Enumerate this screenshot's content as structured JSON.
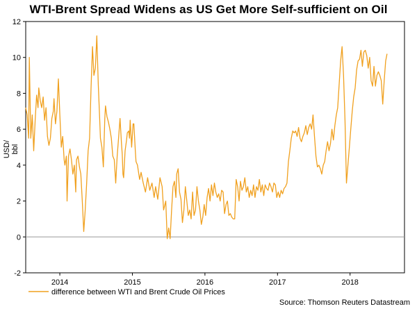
{
  "chart_data": {
    "type": "line",
    "title": "WTI-Brent Spread Widens as US Get More Self-sufficient on Oil",
    "xlabel": "",
    "ylabel": "USD/ bbl",
    "ylim": [
      -2,
      12
    ],
    "yticks": [
      12,
      10,
      8,
      6,
      4,
      2,
      0,
      -2
    ],
    "xlim": [
      2013.53,
      2018.75
    ],
    "xticks": [
      {
        "label": "2014",
        "x": 2014
      },
      {
        "label": "2015",
        "x": 2015
      },
      {
        "label": "2016",
        "x": 2016
      },
      {
        "label": "2017",
        "x": 2017
      },
      {
        "label": "2018",
        "x": 2018
      }
    ],
    "zero_line": true,
    "legend": "bottom-left",
    "source": "Source: Thomson Reuters Datastream",
    "series": [
      {
        "name": "difference between WTI and Brent Crude Oil Prices",
        "color": "#f0a01e",
        "points": [
          [
            2013.53,
            7.2
          ],
          [
            2013.55,
            6.8
          ],
          [
            2013.57,
            5.5
          ],
          [
            2013.58,
            10.0
          ],
          [
            2013.6,
            5.5
          ],
          [
            2013.62,
            6.8
          ],
          [
            2013.64,
            4.8
          ],
          [
            2013.66,
            6.5
          ],
          [
            2013.68,
            7.9
          ],
          [
            2013.7,
            7.2
          ],
          [
            2013.71,
            8.3
          ],
          [
            2013.73,
            7.6
          ],
          [
            2013.75,
            7.2
          ],
          [
            2013.77,
            7.8
          ],
          [
            2013.79,
            6.5
          ],
          [
            2013.81,
            7.2
          ],
          [
            2013.83,
            5.6
          ],
          [
            2013.85,
            5.1
          ],
          [
            2013.87,
            5.5
          ],
          [
            2013.89,
            6.6
          ],
          [
            2013.91,
            7.0
          ],
          [
            2013.92,
            7.7
          ],
          [
            2013.94,
            6.3
          ],
          [
            2013.96,
            7.0
          ],
          [
            2013.98,
            8.8
          ],
          [
            2014.0,
            6.8
          ],
          [
            2014.02,
            5.0
          ],
          [
            2014.04,
            5.6
          ],
          [
            2014.06,
            4.3
          ],
          [
            2014.07,
            4.0
          ],
          [
            2014.09,
            4.5
          ],
          [
            2014.1,
            2.0
          ],
          [
            2014.12,
            4.5
          ],
          [
            2014.14,
            4.9
          ],
          [
            2014.16,
            4.3
          ],
          [
            2014.18,
            3.5
          ],
          [
            2014.2,
            4.0
          ],
          [
            2014.22,
            2.5
          ],
          [
            2014.23,
            4.3
          ],
          [
            2014.25,
            4.5
          ],
          [
            2014.27,
            3.9
          ],
          [
            2014.29,
            3.5
          ],
          [
            2014.31,
            2.0
          ],
          [
            2014.33,
            0.3
          ],
          [
            2014.35,
            1.5
          ],
          [
            2014.37,
            3.0
          ],
          [
            2014.39,
            4.8
          ],
          [
            2014.41,
            5.5
          ],
          [
            2014.43,
            8.3
          ],
          [
            2014.45,
            10.6
          ],
          [
            2014.47,
            9.0
          ],
          [
            2014.49,
            9.4
          ],
          [
            2014.51,
            11.2
          ],
          [
            2014.53,
            8.5
          ],
          [
            2014.55,
            6.5
          ],
          [
            2014.56,
            5.5
          ],
          [
            2014.58,
            5.0
          ],
          [
            2014.6,
            3.9
          ],
          [
            2014.62,
            6.6
          ],
          [
            2014.63,
            7.3
          ],
          [
            2014.65,
            6.7
          ],
          [
            2014.67,
            6.4
          ],
          [
            2014.69,
            6.0
          ],
          [
            2014.71,
            5.5
          ],
          [
            2014.73,
            4.5
          ],
          [
            2014.75,
            4.3
          ],
          [
            2014.77,
            3.0
          ],
          [
            2014.79,
            4.5
          ],
          [
            2014.81,
            5.5
          ],
          [
            2014.83,
            6.6
          ],
          [
            2014.85,
            5.2
          ],
          [
            2014.86,
            4.6
          ],
          [
            2014.87,
            3.5
          ],
          [
            2014.88,
            3.3
          ],
          [
            2014.9,
            4.8
          ],
          [
            2014.92,
            5.4
          ],
          [
            2014.93,
            5.8
          ],
          [
            2014.95,
            5.9
          ],
          [
            2014.96,
            5.5
          ],
          [
            2014.97,
            6.5
          ],
          [
            2014.99,
            5.0
          ],
          [
            2015.01,
            6.3
          ],
          [
            2015.02,
            6.3
          ],
          [
            2015.04,
            4.8
          ],
          [
            2015.05,
            4.2
          ],
          [
            2015.07,
            4.0
          ],
          [
            2015.1,
            3.2
          ],
          [
            2015.12,
            3.6
          ],
          [
            2015.15,
            3.0
          ],
          [
            2015.18,
            2.5
          ],
          [
            2015.21,
            3.3
          ],
          [
            2015.24,
            2.6
          ],
          [
            2015.27,
            3.0
          ],
          [
            2015.3,
            2.2
          ],
          [
            2015.32,
            2.8
          ],
          [
            2015.35,
            2.1
          ],
          [
            2015.38,
            3.3
          ],
          [
            2015.41,
            2.8
          ],
          [
            2015.43,
            1.5
          ],
          [
            2015.46,
            2.0
          ],
          [
            2015.48,
            -0.1
          ],
          [
            2015.5,
            0.5
          ],
          [
            2015.52,
            -0.1
          ],
          [
            2015.54,
            1.5
          ],
          [
            2015.56,
            2.8
          ],
          [
            2015.58,
            3.1
          ],
          [
            2015.6,
            2.2
          ],
          [
            2015.61,
            3.5
          ],
          [
            2015.63,
            3.8
          ],
          [
            2015.65,
            2.5
          ],
          [
            2015.67,
            2.1
          ],
          [
            2015.69,
            0.8
          ],
          [
            2015.71,
            1.5
          ],
          [
            2015.73,
            2.8
          ],
          [
            2015.75,
            2.0
          ],
          [
            2015.77,
            1.2
          ],
          [
            2015.79,
            1.5
          ],
          [
            2015.81,
            1.0
          ],
          [
            2015.83,
            2.5
          ],
          [
            2015.85,
            1.2
          ],
          [
            2015.87,
            1.5
          ],
          [
            2015.89,
            2.8
          ],
          [
            2015.91,
            2.0
          ],
          [
            2015.93,
            1.5
          ],
          [
            2015.95,
            0.7
          ],
          [
            2015.97,
            1.1
          ],
          [
            2015.99,
            1.8
          ],
          [
            2016.01,
            1.2
          ],
          [
            2016.03,
            2.2
          ],
          [
            2016.05,
            2.7
          ],
          [
            2016.07,
            2.0
          ],
          [
            2016.09,
            2.9
          ],
          [
            2016.11,
            2.3
          ],
          [
            2016.13,
            3.0
          ],
          [
            2016.15,
            2.5
          ],
          [
            2016.17,
            2.2
          ],
          [
            2016.19,
            2.4
          ],
          [
            2016.21,
            2.0
          ],
          [
            2016.23,
            2.6
          ],
          [
            2016.25,
            2.5
          ],
          [
            2016.27,
            1.3
          ],
          [
            2016.29,
            1.8
          ],
          [
            2016.31,
            2.0
          ],
          [
            2016.33,
            1.2
          ],
          [
            2016.35,
            1.3
          ],
          [
            2016.37,
            1.1
          ],
          [
            2016.39,
            1.0
          ],
          [
            2016.41,
            1.0
          ],
          [
            2016.43,
            3.2
          ],
          [
            2016.45,
            2.8
          ],
          [
            2016.47,
            2.0
          ],
          [
            2016.49,
            3.1
          ],
          [
            2016.51,
            2.6
          ],
          [
            2016.53,
            2.8
          ],
          [
            2016.55,
            3.3
          ],
          [
            2016.57,
            2.5
          ],
          [
            2016.59,
            2.8
          ],
          [
            2016.61,
            2.2
          ],
          [
            2016.63,
            2.6
          ],
          [
            2016.65,
            2.3
          ],
          [
            2016.67,
            2.9
          ],
          [
            2016.69,
            2.2
          ],
          [
            2016.71,
            2.8
          ],
          [
            2016.73,
            2.6
          ],
          [
            2016.75,
            3.2
          ],
          [
            2016.77,
            2.5
          ],
          [
            2016.79,
            2.9
          ],
          [
            2016.81,
            2.3
          ],
          [
            2016.83,
            2.9
          ],
          [
            2016.85,
            2.7
          ],
          [
            2016.87,
            2.6
          ],
          [
            2016.89,
            3.0
          ],
          [
            2016.91,
            2.8
          ],
          [
            2016.93,
            2.5
          ],
          [
            2016.95,
            3.0
          ],
          [
            2016.97,
            2.9
          ],
          [
            2016.99,
            2.2
          ],
          [
            2017.01,
            2.5
          ],
          [
            2017.03,
            2.2
          ],
          [
            2017.05,
            2.6
          ],
          [
            2017.07,
            2.4
          ],
          [
            2017.09,
            2.7
          ],
          [
            2017.11,
            2.8
          ],
          [
            2017.13,
            3.0
          ],
          [
            2017.15,
            4.2
          ],
          [
            2017.17,
            4.8
          ],
          [
            2017.19,
            5.5
          ],
          [
            2017.21,
            5.9
          ],
          [
            2017.23,
            5.8
          ],
          [
            2017.25,
            5.9
          ],
          [
            2017.27,
            5.6
          ],
          [
            2017.29,
            6.1
          ],
          [
            2017.31,
            5.5
          ],
          [
            2017.33,
            5.3
          ],
          [
            2017.35,
            5.6
          ],
          [
            2017.37,
            5.8
          ],
          [
            2017.39,
            6.2
          ],
          [
            2017.41,
            5.7
          ],
          [
            2017.43,
            6.1
          ],
          [
            2017.45,
            6.3
          ],
          [
            2017.47,
            6.0
          ],
          [
            2017.49,
            6.8
          ],
          [
            2017.51,
            5.6
          ],
          [
            2017.53,
            4.5
          ],
          [
            2017.55,
            3.9
          ],
          [
            2017.57,
            4.0
          ],
          [
            2017.59,
            3.8
          ],
          [
            2017.61,
            3.5
          ],
          [
            2017.63,
            4.0
          ],
          [
            2017.65,
            4.2
          ],
          [
            2017.67,
            4.8
          ],
          [
            2017.69,
            5.3
          ],
          [
            2017.71,
            4.8
          ],
          [
            2017.73,
            5.2
          ],
          [
            2017.75,
            6.0
          ],
          [
            2017.77,
            5.4
          ],
          [
            2017.79,
            6.2
          ],
          [
            2017.81,
            6.8
          ],
          [
            2017.83,
            7.2
          ],
          [
            2017.85,
            8.5
          ],
          [
            2017.87,
            9.8
          ],
          [
            2017.89,
            10.6
          ],
          [
            2017.91,
            9.0
          ],
          [
            2017.93,
            6.5
          ],
          [
            2017.95,
            3.0
          ],
          [
            2017.97,
            4.0
          ],
          [
            2017.99,
            5.0
          ],
          [
            2018.01,
            6.0
          ],
          [
            2018.03,
            7.0
          ],
          [
            2018.05,
            7.8
          ],
          [
            2018.07,
            8.3
          ],
          [
            2018.09,
            9.3
          ],
          [
            2018.11,
            9.8
          ],
          [
            2018.13,
            9.9
          ],
          [
            2018.15,
            10.4
          ],
          [
            2018.17,
            9.5
          ],
          [
            2018.19,
            10.3
          ],
          [
            2018.21,
            10.4
          ],
          [
            2018.23,
            10.1
          ],
          [
            2018.25,
            9.4
          ],
          [
            2018.27,
            10.0
          ],
          [
            2018.29,
            8.7
          ],
          [
            2018.31,
            8.4
          ],
          [
            2018.33,
            9.5
          ],
          [
            2018.35,
            8.4
          ],
          [
            2018.37,
            9.0
          ],
          [
            2018.39,
            9.2
          ],
          [
            2018.41,
            9.0
          ],
          [
            2018.43,
            8.7
          ],
          [
            2018.45,
            7.4
          ],
          [
            2018.47,
            8.7
          ],
          [
            2018.49,
            9.8
          ],
          [
            2018.51,
            10.2
          ]
        ]
      }
    ]
  }
}
